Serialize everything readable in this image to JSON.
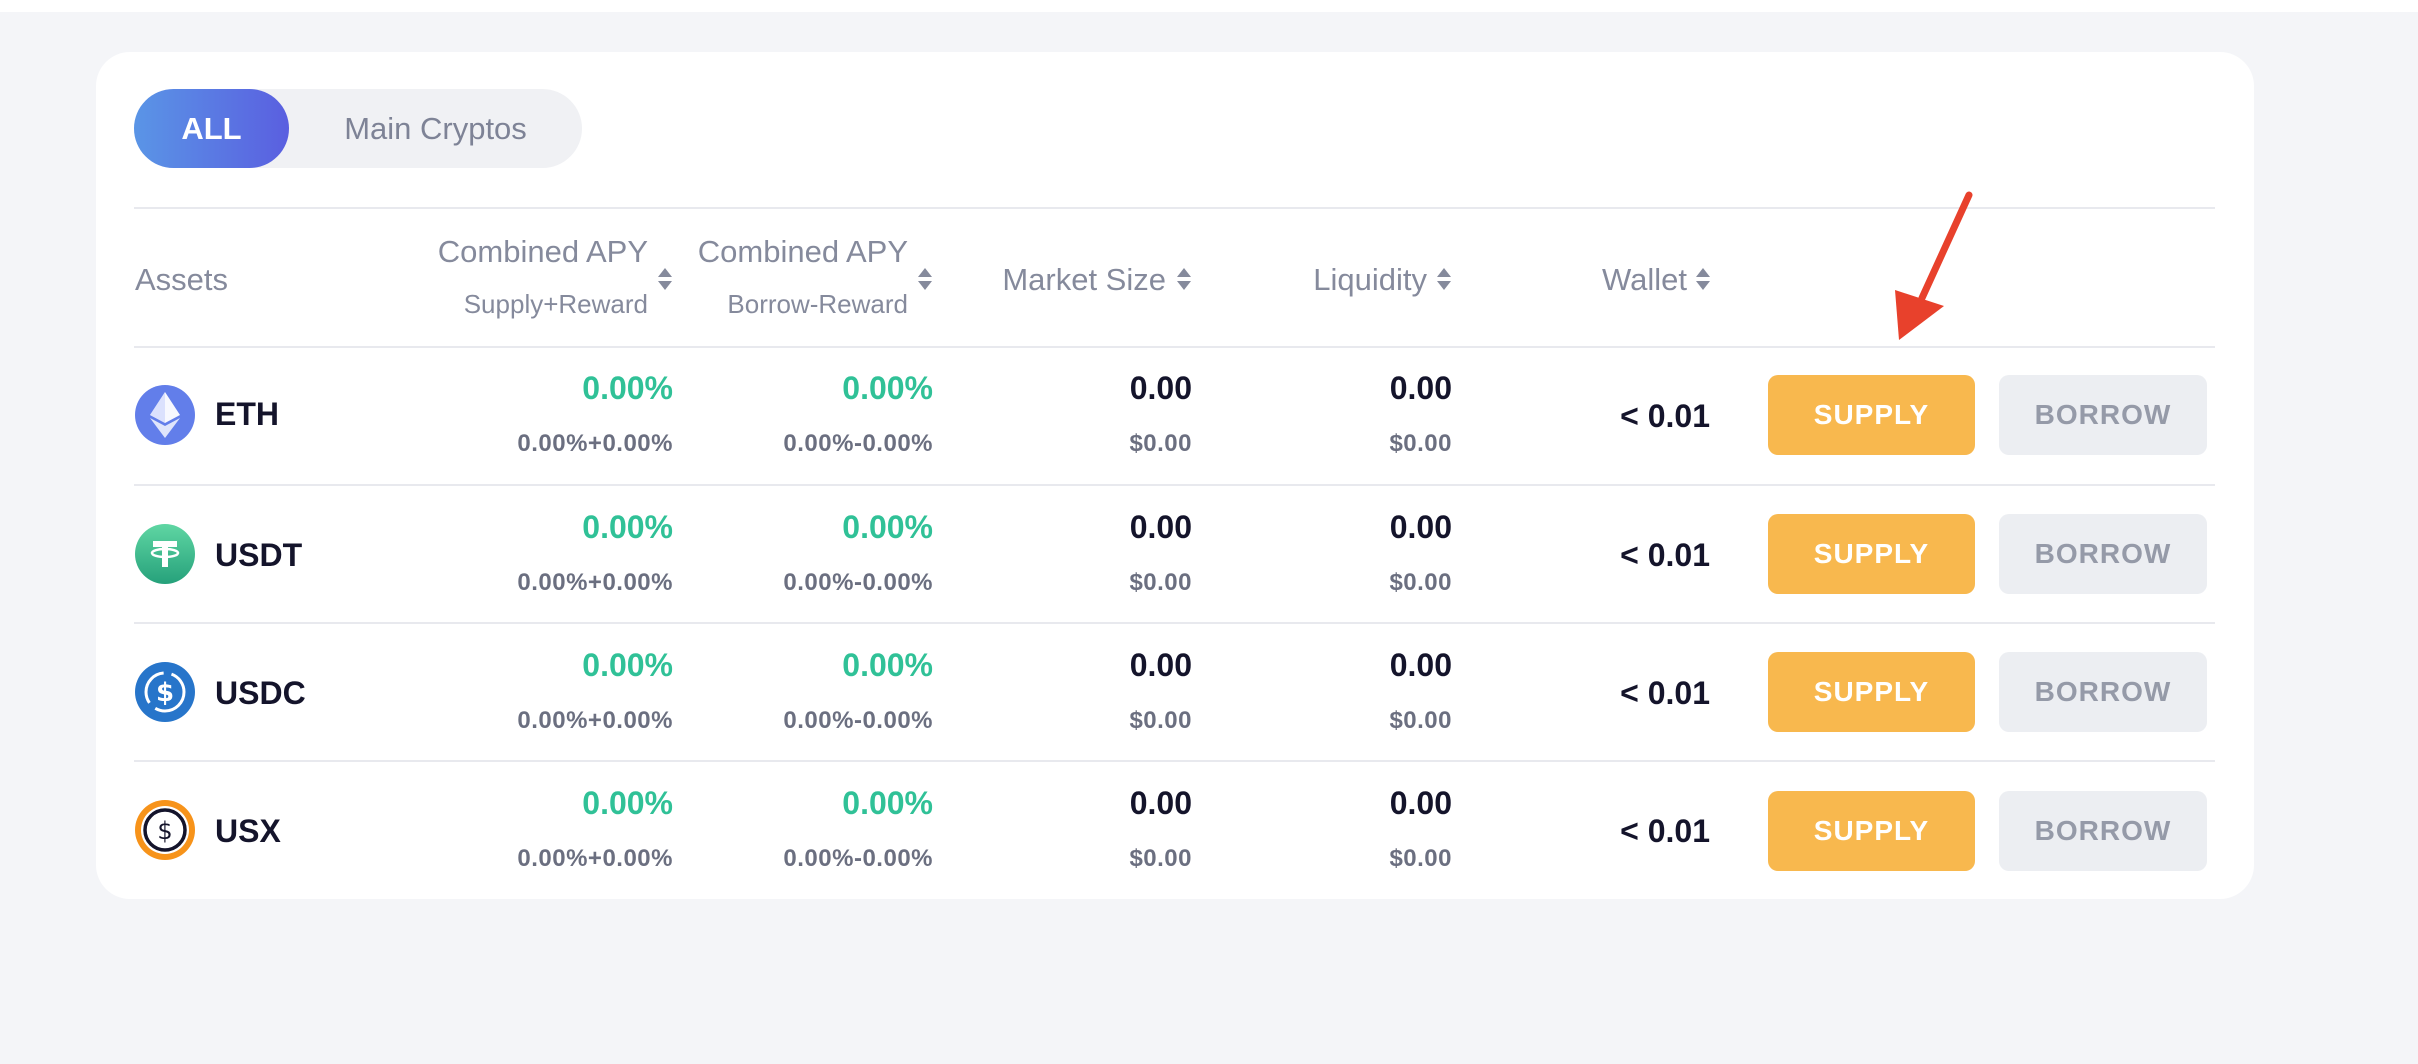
{
  "filter": {
    "all_label": "ALL",
    "main_label": "Main Cryptos"
  },
  "header": {
    "assets": "Assets",
    "supply_apy": "Combined APY",
    "supply_apy_sub": "Supply+Reward",
    "borrow_apy": "Combined APY",
    "borrow_apy_sub": "Borrow-Reward",
    "market_size": "Market Size",
    "liquidity": "Liquidity",
    "wallet": "Wallet"
  },
  "rows": [
    {
      "symbol": "ETH",
      "icon": "eth-icon",
      "supply_apy": "0.00%",
      "supply_apy_sub": "0.00%+0.00%",
      "borrow_apy": "0.00%",
      "borrow_apy_sub": "0.00%-0.00%",
      "market_size": "0.00",
      "market_size_usd": "$0.00",
      "liquidity": "0.00",
      "liquidity_usd": "$0.00",
      "wallet": "< 0.01",
      "supply_label": "SUPPLY",
      "borrow_label": "BORROW"
    },
    {
      "symbol": "USDT",
      "icon": "usdt-icon",
      "supply_apy": "0.00%",
      "supply_apy_sub": "0.00%+0.00%",
      "borrow_apy": "0.00%",
      "borrow_apy_sub": "0.00%-0.00%",
      "market_size": "0.00",
      "market_size_usd": "$0.00",
      "liquidity": "0.00",
      "liquidity_usd": "$0.00",
      "wallet": "< 0.01",
      "supply_label": "SUPPLY",
      "borrow_label": "BORROW"
    },
    {
      "symbol": "USDC",
      "icon": "usdc-icon",
      "supply_apy": "0.00%",
      "supply_apy_sub": "0.00%+0.00%",
      "borrow_apy": "0.00%",
      "borrow_apy_sub": "0.00%-0.00%",
      "market_size": "0.00",
      "market_size_usd": "$0.00",
      "liquidity": "0.00",
      "liquidity_usd": "$0.00",
      "wallet": "< 0.01",
      "supply_label": "SUPPLY",
      "borrow_label": "BORROW"
    },
    {
      "symbol": "USX",
      "icon": "usx-icon",
      "supply_apy": "0.00%",
      "supply_apy_sub": "0.00%+0.00%",
      "borrow_apy": "0.00%",
      "borrow_apy_sub": "0.00%-0.00%",
      "market_size": "0.00",
      "market_size_usd": "$0.00",
      "liquidity": "0.00",
      "liquidity_usd": "$0.00",
      "wallet": "< 0.01",
      "supply_label": "SUPPLY",
      "borrow_label": "BORROW"
    }
  ],
  "colors": {
    "supply_button": "#f8b84e",
    "borrow_button": "#eceef2",
    "apy_green": "#30c197",
    "toggle_active_start": "#5a95e6",
    "toggle_active_end": "#5a5fe0",
    "annotation_arrow": "#e8412c"
  },
  "annotation": {
    "icon": "red-arrow-icon"
  }
}
